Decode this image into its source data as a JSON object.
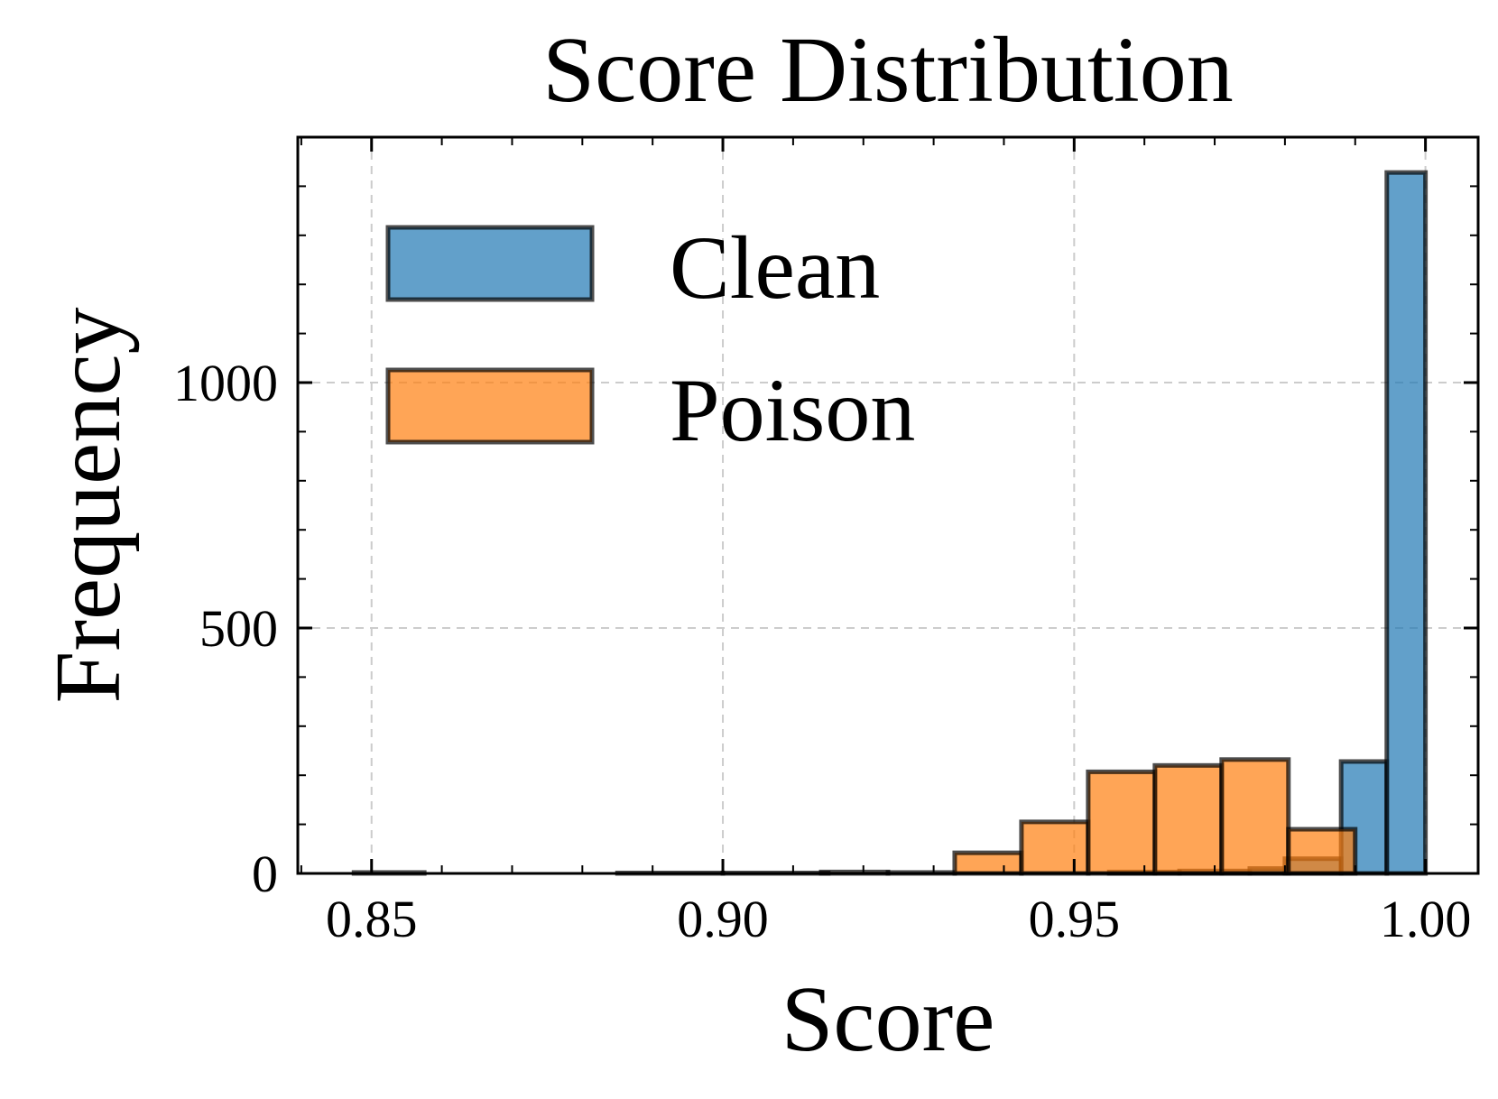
{
  "chart_data": {
    "type": "bar",
    "title": "Score Distribution",
    "xlabel": "Score",
    "ylabel": "Frequency",
    "xlim": [
      0.8395,
      1.0075
    ],
    "ylim": [
      0,
      1500
    ],
    "x_ticks": [
      0.85,
      0.9,
      0.95,
      1.0
    ],
    "x_tick_labels": [
      "0.85",
      "0.90",
      "0.95",
      "1.00"
    ],
    "y_ticks": [
      0,
      500,
      1000
    ],
    "y_tick_labels": [
      "0",
      "500",
      "1000"
    ],
    "grid": true,
    "legend_position": "top-left",
    "series": [
      {
        "name": "Clean",
        "color": "#1f77b4",
        "bins": [
          {
            "x0": 0.8475,
            "x1": 0.8575,
            "value": 2
          },
          {
            "x0": 0.885,
            "x1": 0.9,
            "value": 1
          },
          {
            "x0": 0.9,
            "x1": 0.915,
            "value": 1
          },
          {
            "x0": 0.955,
            "x1": 0.965,
            "value": 3
          },
          {
            "x0": 0.965,
            "x1": 0.975,
            "value": 5
          },
          {
            "x0": 0.975,
            "x1": 0.98,
            "value": 10
          },
          {
            "x0": 0.98,
            "x1": 0.988,
            "value": 30
          },
          {
            "x0": 0.988,
            "x1": 0.9945,
            "value": 228
          },
          {
            "x0": 0.9945,
            "x1": 1.0,
            "value": 1428
          }
        ]
      },
      {
        "name": "Poison",
        "color": "#ff7f0e",
        "bins": [
          {
            "x0": 0.914,
            "x1": 0.9235,
            "value": 3
          },
          {
            "x0": 0.9235,
            "x1": 0.933,
            "value": 2
          },
          {
            "x0": 0.933,
            "x1": 0.9425,
            "value": 42
          },
          {
            "x0": 0.9425,
            "x1": 0.952,
            "value": 105
          },
          {
            "x0": 0.952,
            "x1": 0.9615,
            "value": 207
          },
          {
            "x0": 0.9615,
            "x1": 0.971,
            "value": 220
          },
          {
            "x0": 0.971,
            "x1": 0.9805,
            "value": 232
          },
          {
            "x0": 0.9805,
            "x1": 0.99,
            "value": 90
          }
        ]
      }
    ]
  }
}
